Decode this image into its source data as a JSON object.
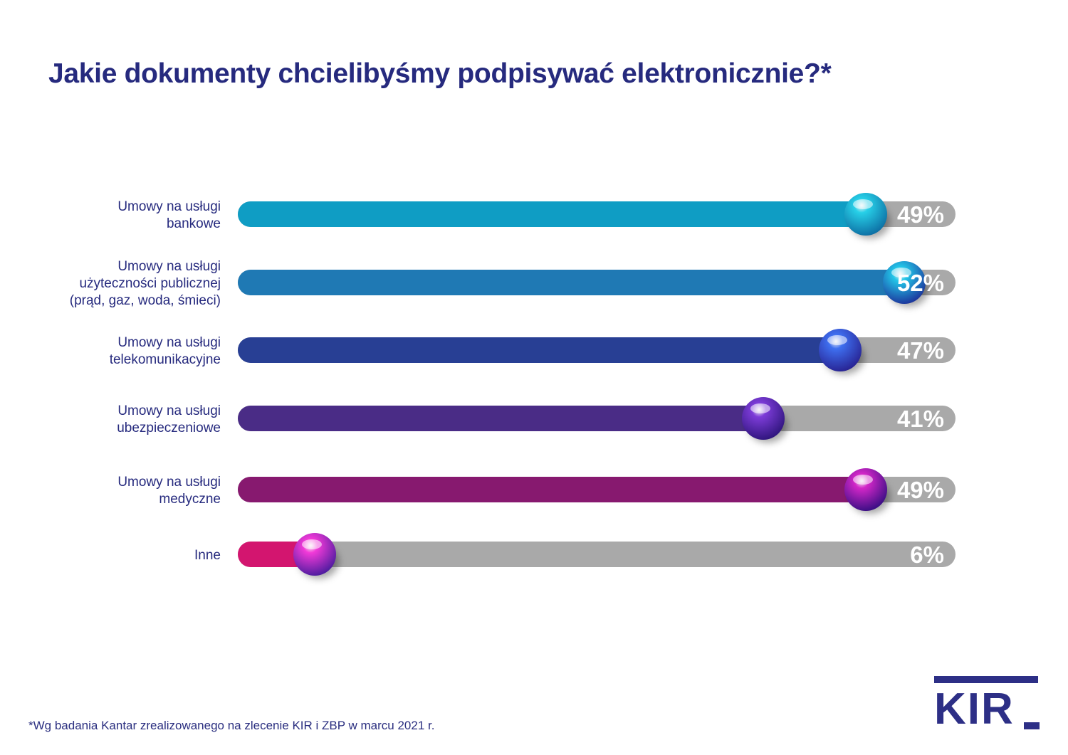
{
  "title": "Jakie dokumenty chcielibyśmy podpisywać elektronicznie?*",
  "footnote": "*Wg badania Kantar zrealizowanego na zlecenie KIR i ZBP w marcu 2021 r.",
  "logo": {
    "text": "KIR"
  },
  "colors": {
    "track": "#a9a9a9",
    "label": "#262a7e",
    "value_label": "#ffffff"
  },
  "chart_data": {
    "type": "bar",
    "orientation": "horizontal",
    "title": "Jakie dokumenty chcielibyśmy podpisywać elektronicznie?*",
    "unit": "%",
    "xlim": [
      0,
      56
    ],
    "categories": [
      [
        "Umowy na usługi",
        "bankowe"
      ],
      [
        "Umowy na usługi",
        "użyteczności publicznej",
        "(prąd, gaz, woda, śmieci)"
      ],
      [
        "Umowy na usługi",
        "telekomunikacyjne"
      ],
      [
        "Umowy na usługi",
        "ubezpieczeniowe"
      ],
      [
        "Umowy na usługi",
        "medyczne"
      ],
      [
        "Inne"
      ]
    ],
    "values": [
      49,
      52,
      47,
      41,
      49,
      6
    ],
    "value_labels": [
      "49%",
      "52%",
      "47%",
      "41%",
      "49%",
      "6%"
    ],
    "bar_colors": [
      "#0f9dc4",
      "#1f79b4",
      "#283f94",
      "#4a2c86",
      "#87196f",
      "#d3156f"
    ],
    "knob_colors": [
      [
        "#27d0e8",
        "#0c6aa0"
      ],
      [
        "#22c6e8",
        "#1c2d98"
      ],
      [
        "#3e6ff0",
        "#271f8e"
      ],
      [
        "#7d3cd8",
        "#2b1378"
      ],
      [
        "#d327c8",
        "#300c80"
      ],
      [
        "#f23ad8",
        "#441a9c"
      ]
    ]
  }
}
